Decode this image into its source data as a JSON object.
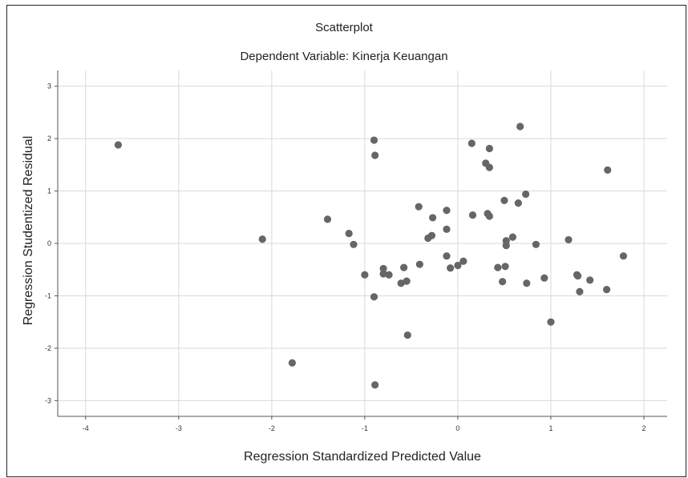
{
  "chart_data": {
    "type": "scatter",
    "title": "Scatterplot",
    "subtitle": "Dependent Variable: Kinerja Keuangan",
    "xlabel": "Regression Standardized Predicted Value",
    "ylabel": "Regression Studentized Residual",
    "xlim": [
      -4.3,
      2.25
    ],
    "ylim": [
      -3.3,
      3.3
    ],
    "xticks": [
      -4,
      -3,
      -2,
      -1,
      0,
      1,
      2
    ],
    "yticks": [
      -3,
      -2,
      -1,
      0,
      1,
      2,
      3
    ],
    "grid": true,
    "point_color": "#666666",
    "points": [
      {
        "x": -3.65,
        "y": 1.88
      },
      {
        "x": -2.1,
        "y": 0.08
      },
      {
        "x": -1.78,
        "y": -2.28
      },
      {
        "x": -1.4,
        "y": 0.46
      },
      {
        "x": -1.17,
        "y": 0.19
      },
      {
        "x": -1.12,
        "y": -0.02
      },
      {
        "x": -1.0,
        "y": -0.6
      },
      {
        "x": -0.9,
        "y": 1.97
      },
      {
        "x": -0.89,
        "y": 1.68
      },
      {
        "x": -0.9,
        "y": -1.02
      },
      {
        "x": -0.89,
        "y": -2.7
      },
      {
        "x": -0.8,
        "y": -0.48
      },
      {
        "x": -0.8,
        "y": -0.58
      },
      {
        "x": -0.74,
        "y": -0.6
      },
      {
        "x": -0.61,
        "y": -0.76
      },
      {
        "x": -0.58,
        "y": -0.46
      },
      {
        "x": -0.55,
        "y": -0.72
      },
      {
        "x": -0.54,
        "y": -1.75
      },
      {
        "x": -0.42,
        "y": 0.7
      },
      {
        "x": -0.41,
        "y": -0.4
      },
      {
        "x": -0.32,
        "y": 0.1
      },
      {
        "x": -0.28,
        "y": 0.15
      },
      {
        "x": -0.27,
        "y": 0.49
      },
      {
        "x": -0.12,
        "y": 0.63
      },
      {
        "x": -0.12,
        "y": 0.27
      },
      {
        "x": -0.12,
        "y": -0.24
      },
      {
        "x": -0.08,
        "y": -0.47
      },
      {
        "x": 0.0,
        "y": -0.42
      },
      {
        "x": 0.06,
        "y": -0.34
      },
      {
        "x": 0.15,
        "y": 1.91
      },
      {
        "x": 0.16,
        "y": 0.54
      },
      {
        "x": 0.3,
        "y": 1.53
      },
      {
        "x": 0.32,
        "y": 0.57
      },
      {
        "x": 0.34,
        "y": 1.81
      },
      {
        "x": 0.34,
        "y": 1.45
      },
      {
        "x": 0.34,
        "y": 0.52
      },
      {
        "x": 0.43,
        "y": -0.46
      },
      {
        "x": 0.48,
        "y": -0.73
      },
      {
        "x": 0.5,
        "y": 0.82
      },
      {
        "x": 0.51,
        "y": -0.44
      },
      {
        "x": 0.52,
        "y": 0.05
      },
      {
        "x": 0.52,
        "y": -0.04
      },
      {
        "x": 0.59,
        "y": 0.12
      },
      {
        "x": 0.65,
        "y": 0.77
      },
      {
        "x": 0.67,
        "y": 2.23
      },
      {
        "x": 0.73,
        "y": 0.94
      },
      {
        "x": 0.74,
        "y": -0.76
      },
      {
        "x": 0.84,
        "y": -0.02
      },
      {
        "x": 0.93,
        "y": -0.66
      },
      {
        "x": 1.0,
        "y": -1.5
      },
      {
        "x": 1.19,
        "y": 0.07
      },
      {
        "x": 1.28,
        "y": -0.6
      },
      {
        "x": 1.29,
        "y": -0.62
      },
      {
        "x": 1.31,
        "y": -0.92
      },
      {
        "x": 1.42,
        "y": -0.7
      },
      {
        "x": 1.6,
        "y": -0.88
      },
      {
        "x": 1.61,
        "y": 1.4
      },
      {
        "x": 1.78,
        "y": -0.24
      }
    ]
  }
}
